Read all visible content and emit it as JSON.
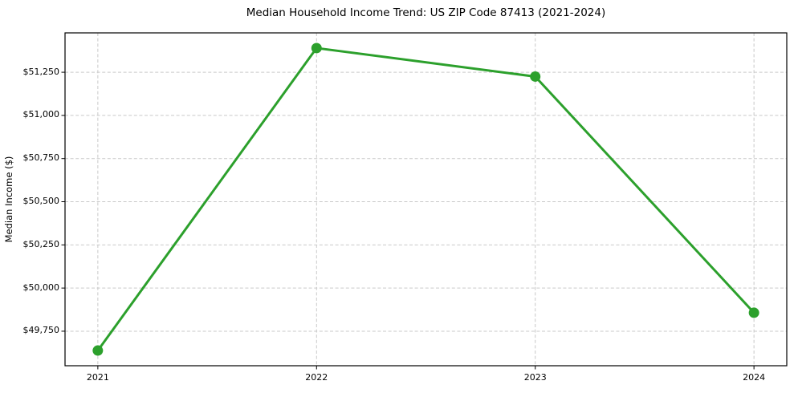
{
  "chart_data": {
    "type": "line",
    "title": "Median Household Income Trend: US ZIP Code 87413 (2021-2024)",
    "xlabel": "",
    "ylabel": "Median Income ($)",
    "x": [
      2021,
      2022,
      2023,
      2024
    ],
    "x_tick_labels": [
      "2021",
      "2022",
      "2023",
      "2024"
    ],
    "values": [
      49638,
      51390,
      51225,
      49857
    ],
    "y_ticks": [
      49750,
      50000,
      50250,
      50500,
      50750,
      51000,
      51250
    ],
    "y_tick_labels": [
      "$49,750",
      "$50,000",
      "$50,250",
      "$50,500",
      "$50,750",
      "$51,000",
      "$51,250"
    ],
    "xlim": [
      2020.85,
      2024.15
    ],
    "ylim": [
      49550,
      51478
    ],
    "grid": true,
    "grid_style": "dashed",
    "legend": false,
    "line_color": "#2ca02c",
    "marker": "circle",
    "grid_color": "#c9c9c9",
    "spine_color": "#000000",
    "background_color": "#ffffff"
  }
}
